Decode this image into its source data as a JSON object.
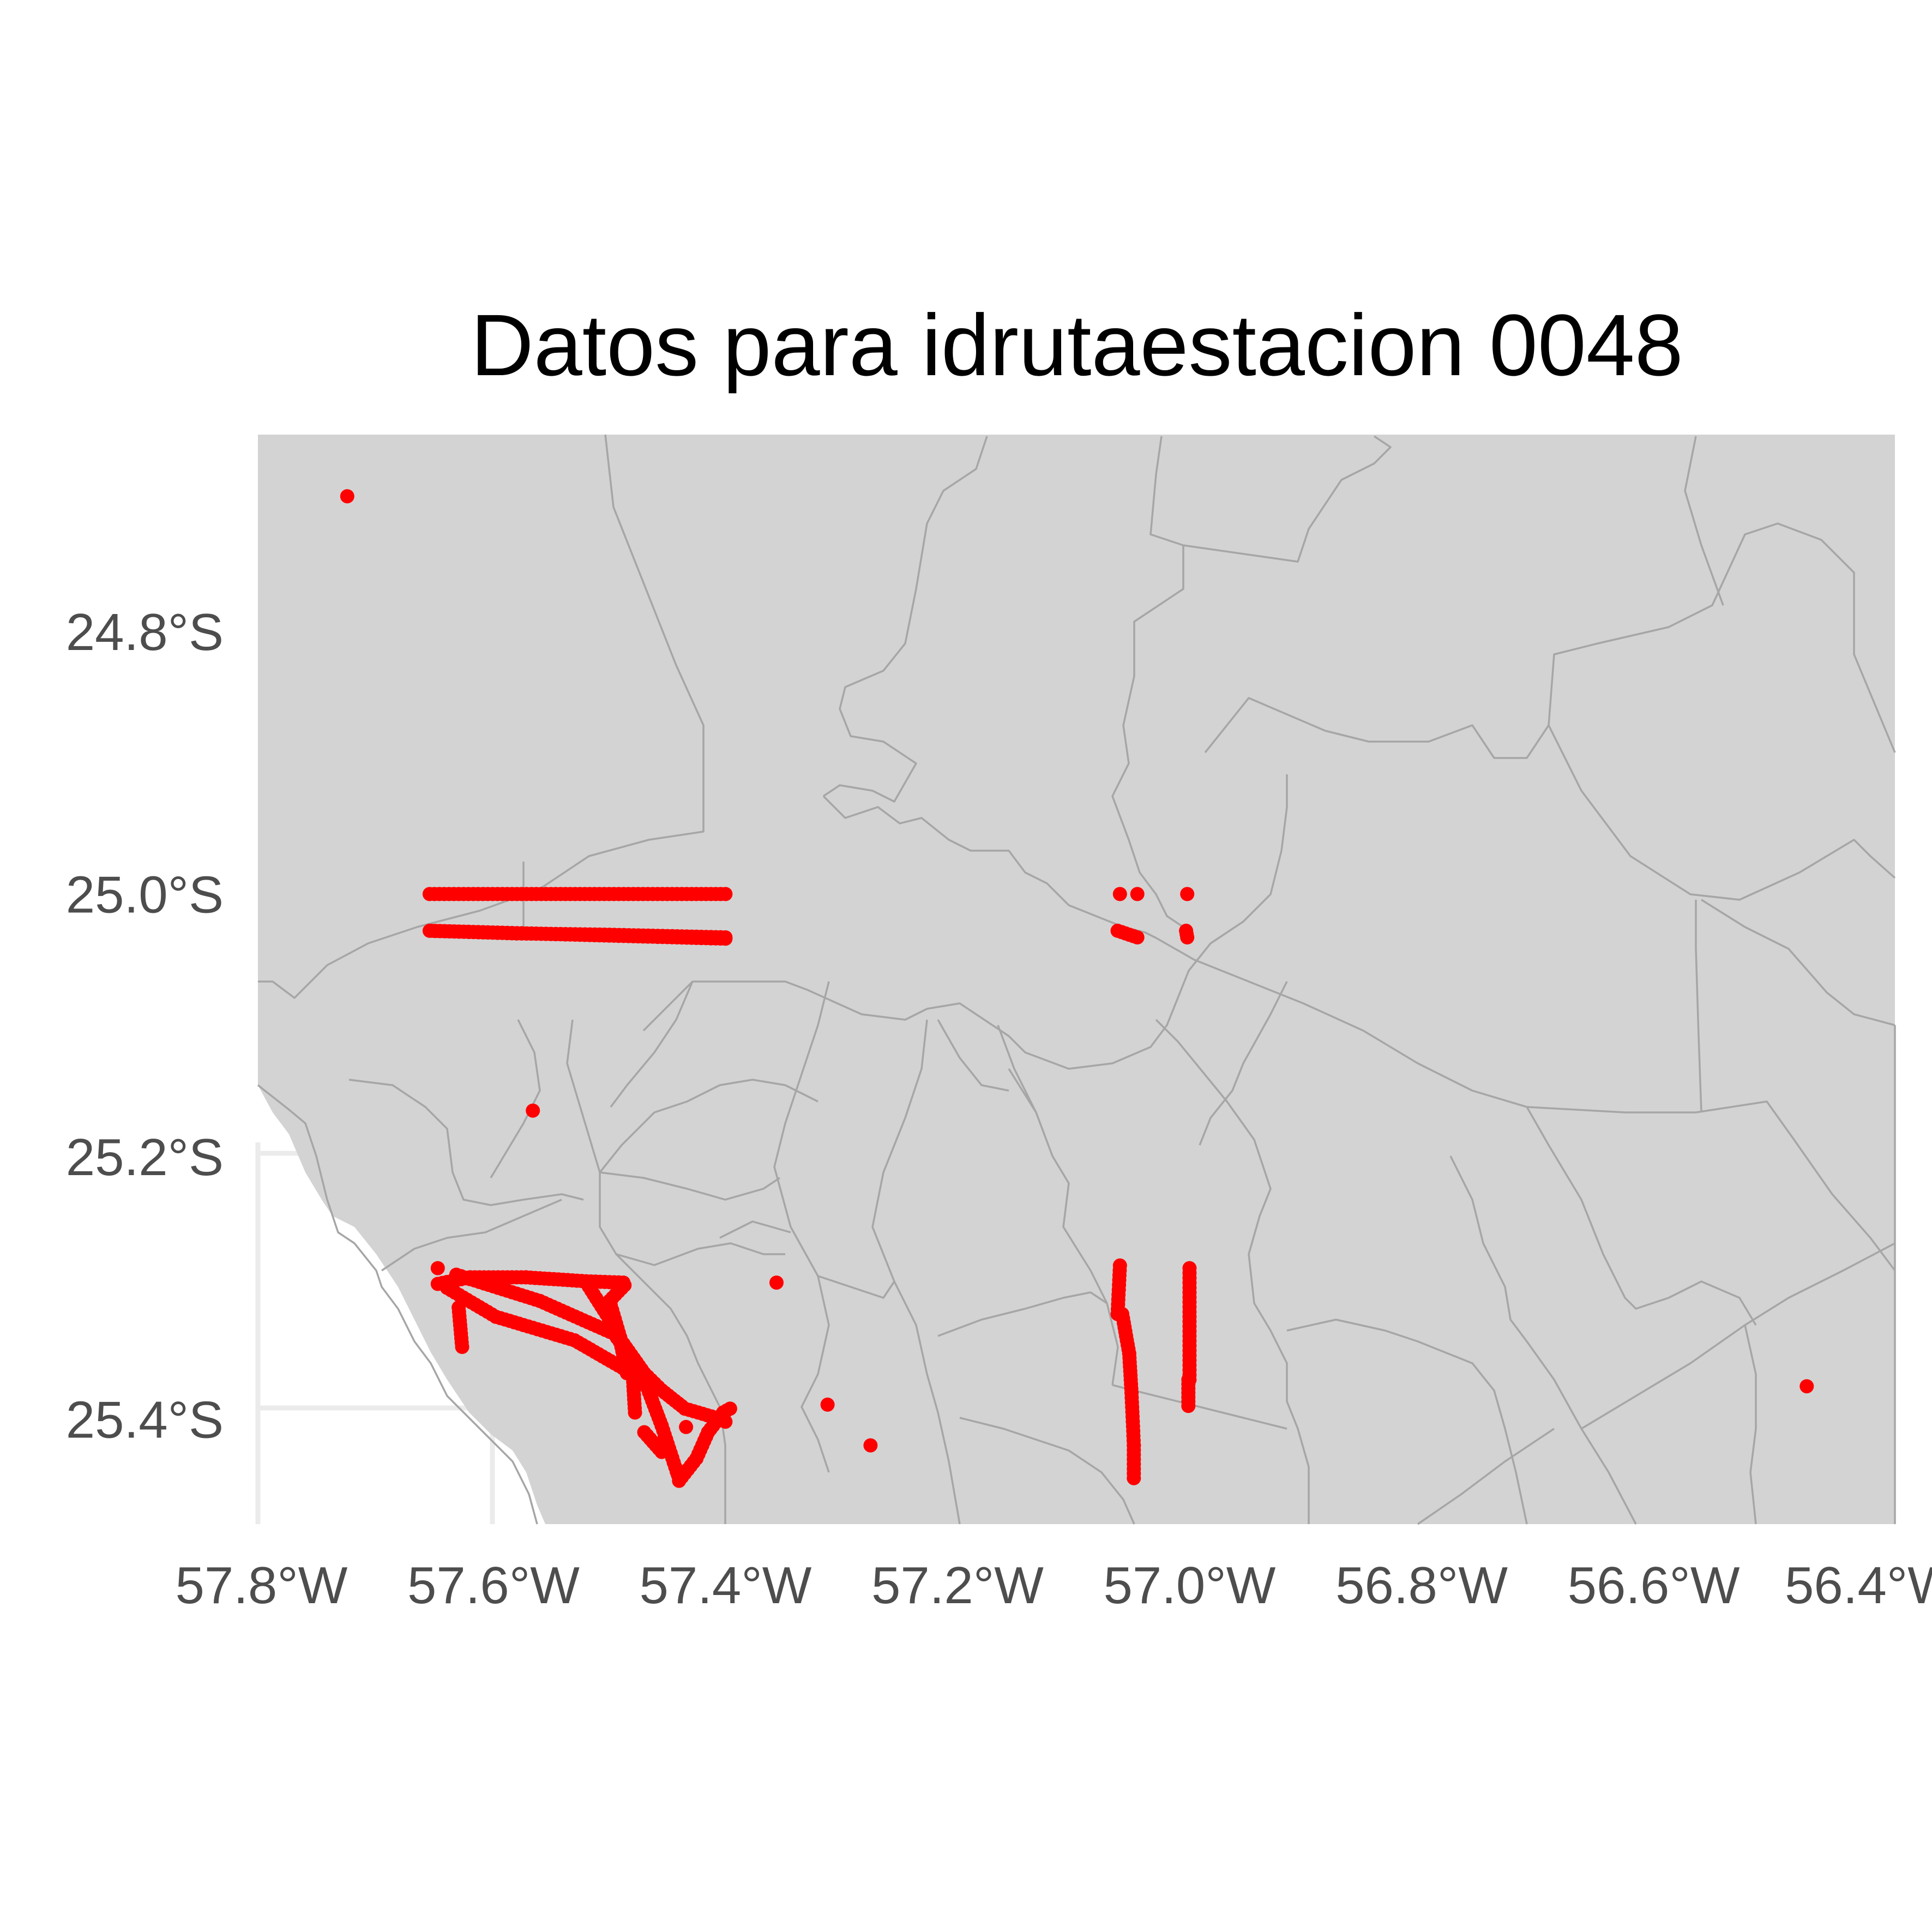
{
  "colors": {
    "background": "#ffffff",
    "land": "#d3d3d3",
    "border": "#a6a6a6",
    "points": "#ff0000",
    "grid": "#ebebeb",
    "tick_label": "#4d4d4d",
    "title": "#000000"
  },
  "chart_data": {
    "type": "scatter",
    "title": "Datos para idrutaestacion 0048",
    "xlabel": "",
    "ylabel": "",
    "xlim": [
      -57.803,
      -56.392
    ],
    "ylim": [
      -25.48,
      -24.65
    ],
    "x_ticks": [
      {
        "value": -57.8,
        "label": "57.8°W"
      },
      {
        "value": -57.6,
        "label": "57.6°W"
      },
      {
        "value": -57.4,
        "label": "57.4°W"
      },
      {
        "value": -57.2,
        "label": "57.2°W"
      },
      {
        "value": -57.0,
        "label": "57.0°W"
      },
      {
        "value": -56.8,
        "label": "56.8°W"
      },
      {
        "value": -56.6,
        "label": "56.6°W"
      },
      {
        "value": -56.4,
        "label": "56.4°W"
      }
    ],
    "y_ticks": [
      {
        "value": -24.8,
        "label": "24.8°S"
      },
      {
        "value": -25.0,
        "label": "25.0°S"
      },
      {
        "value": -25.2,
        "label": "25.2°S"
      },
      {
        "value": -25.4,
        "label": "25.4°S"
      }
    ],
    "grid": true,
    "legend": "none",
    "series": [
      {
        "color": "#ff0000",
        "points": [
          {
            "x": -57.726,
            "y": -24.697
          },
          {
            "x": -57.566,
            "y": -25.165
          },
          {
            "x": -57.356,
            "y": -25.296
          },
          {
            "x": -57.312,
            "y": -25.389
          },
          {
            "x": -57.275,
            "y": -25.42
          },
          {
            "x": -56.468,
            "y": -25.375
          },
          {
            "x": -57.434,
            "y": -25.406
          }
        ],
        "tracks": [
          [
            [
              -57.655,
              -25.0
            ],
            [
              -57.4,
              -25.0
            ]
          ],
          [
            [
              -57.655,
              -25.028
            ],
            [
              -57.4,
              -25.034
            ]
          ],
          [
            [
              -57.654,
              -25.028
            ],
            [
              -57.58,
              -25.03
            ],
            [
              -57.5,
              -25.031
            ],
            [
              -57.4,
              -25.033
            ]
          ],
          [
            [
              -57.648,
              -25.297
            ],
            [
              -57.62,
              -25.292
            ],
            [
              -57.572,
              -25.292
            ],
            [
              -57.52,
              -25.295
            ],
            [
              -57.488,
              -25.296
            ]
          ],
          [
            [
              -57.632,
              -25.29
            ],
            [
              -57.56,
              -25.31
            ],
            [
              -57.496,
              -25.335
            ],
            [
              -57.472,
              -25.365
            ]
          ],
          [
            [
              -57.64,
              -25.3
            ],
            [
              -57.598,
              -25.322
            ],
            [
              -57.53,
              -25.34
            ],
            [
              -57.475,
              -25.368
            ]
          ],
          [
            [
              -57.63,
              -25.315
            ],
            [
              -57.627,
              -25.345
            ]
          ],
          [
            [
              -57.52,
              -25.296
            ],
            [
              -57.492,
              -25.335
            ],
            [
              -57.485,
              -25.365
            ]
          ],
          [
            [
              -57.487,
              -25.298
            ],
            [
              -57.5,
              -25.31
            ],
            [
              -57.485,
              -25.355
            ]
          ],
          [
            [
              -57.49,
              -25.34
            ],
            [
              -57.47,
              -25.365
            ],
            [
              -57.455,
              -25.378
            ],
            [
              -57.435,
              -25.392
            ],
            [
              -57.412,
              -25.398
            ],
            [
              -57.4,
              -25.402
            ]
          ],
          [
            [
              -57.47,
              -25.37
            ],
            [
              -57.455,
              -25.405
            ],
            [
              -57.442,
              -25.44
            ],
            [
              -57.44,
              -25.445
            ]
          ],
          [
            [
              -57.44,
              -25.447
            ],
            [
              -57.425,
              -25.43
            ],
            [
              -57.415,
              -25.41
            ],
            [
              -57.402,
              -25.395
            ],
            [
              -57.396,
              -25.392
            ]
          ],
          [
            [
              -57.48,
              -25.365
            ],
            [
              -57.478,
              -25.395
            ]
          ],
          [
            [
              -57.47,
              -25.41
            ],
            [
              -57.455,
              -25.425
            ]
          ],
          [
            [
              -57.06,
              -25.283
            ],
            [
              -57.062,
              -25.32
            ]
          ],
          [
            [
              -57.058,
              -25.32
            ],
            [
              -57.052,
              -25.35
            ],
            [
              -57.05,
              -25.38
            ],
            [
              -57.048,
              -25.42
            ],
            [
              -57.048,
              -25.445
            ]
          ],
          [
            [
              -57.0,
              -25.285
            ],
            [
              -57.0,
              -25.37
            ]
          ],
          [
            [
              -57.001,
              -25.37
            ],
            [
              -57.001,
              -25.39
            ]
          ],
          [
            [
              -57.062,
              -25.028
            ],
            [
              -57.045,
              -25.033
            ]
          ],
          [
            [
              -57.003,
              -25.028
            ],
            [
              -57.002,
              -25.033
            ]
          ]
        ],
        "extra_points": [
          {
            "x": -57.648,
            "y": -25.285
          },
          {
            "x": -57.06,
            "y": -25.0
          },
          {
            "x": -57.045,
            "y": -25.0
          },
          {
            "x": -57.002,
            "y": -25.0
          }
        ]
      }
    ]
  }
}
